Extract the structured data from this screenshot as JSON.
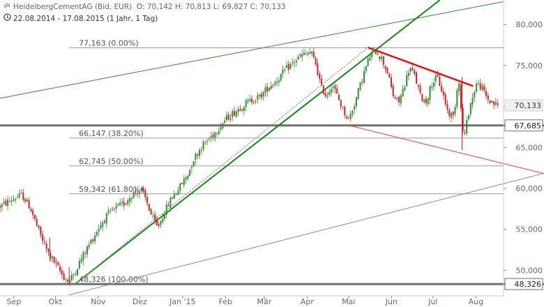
{
  "header": {
    "instrument": "HeidelbergCementAG (Bid, EUR)",
    "ohlc": "O: 70,142  H: 70,813  L: 69,827  C: 70,133",
    "range": "22.08.2014 - 17.08.2015 (1 Jahr, 1 Tag)",
    "logo_icon": "candlestick-logo-icon",
    "clock_icon": "clock-icon"
  },
  "chart_data": {
    "type": "candlestick",
    "ylim": [
      46.8,
      83.0
    ],
    "x_ticks": [
      {
        "label": "Sep",
        "day": 10
      },
      {
        "label": "Okt",
        "day": 40
      },
      {
        "label": "Nov",
        "day": 71
      },
      {
        "label": "Dez",
        "day": 101
      },
      {
        "label": "Jan '15",
        "day": 132
      },
      {
        "label": "Feb",
        "day": 163
      },
      {
        "label": "Mär",
        "day": 191
      },
      {
        "label": "Apr",
        "day": 222
      },
      {
        "label": "Mai",
        "day": 252
      },
      {
        "label": "Jun",
        "day": 283
      },
      {
        "label": "Jul",
        "day": 313
      },
      {
        "label": "Aug",
        "day": 344
      }
    ],
    "y_ticks": [
      "80,000",
      "75,000",
      "70,000",
      "65,000",
      "60,000",
      "55,000",
      "50,000"
    ],
    "y_tick_values": [
      80,
      75,
      70,
      65,
      60,
      55,
      50
    ],
    "price_anchors": [
      [
        0,
        57.8
      ],
      [
        8,
        58.6
      ],
      [
        16,
        59.2
      ],
      [
        22,
        57.6
      ],
      [
        28,
        54.8
      ],
      [
        34,
        52.4
      ],
      [
        40,
        50.8
      ],
      [
        46,
        49.2
      ],
      [
        50,
        48.6
      ],
      [
        54,
        49.8
      ],
      [
        60,
        51.8
      ],
      [
        66,
        53.6
      ],
      [
        72,
        55.4
      ],
      [
        78,
        56.8
      ],
      [
        84,
        57.6
      ],
      [
        90,
        58.2
      ],
      [
        96,
        59.4
      ],
      [
        102,
        59.8
      ],
      [
        106,
        58.4
      ],
      [
        110,
        56.4
      ],
      [
        114,
        55.2
      ],
      [
        118,
        56.8
      ],
      [
        124,
        58.8
      ],
      [
        130,
        60.2
      ],
      [
        136,
        61.8
      ],
      [
        140,
        63.6
      ],
      [
        146,
        65.2
      ],
      [
        152,
        66.2
      ],
      [
        158,
        67.4
      ],
      [
        164,
        68.6
      ],
      [
        170,
        69.4
      ],
      [
        176,
        70.2
      ],
      [
        182,
        70.8
      ],
      [
        188,
        71.2
      ],
      [
        194,
        72.4
      ],
      [
        200,
        73.2
      ],
      [
        206,
        74.4
      ],
      [
        212,
        75.4
      ],
      [
        218,
        76.2
      ],
      [
        224,
        76.6
      ],
      [
        228,
        75.4
      ],
      [
        232,
        72.4
      ],
      [
        236,
        71.2
      ],
      [
        240,
        72.8
      ],
      [
        244,
        71.2
      ],
      [
        248,
        69.6
      ],
      [
        252,
        68.4
      ],
      [
        256,
        70.2
      ],
      [
        260,
        72.4
      ],
      [
        264,
        74.6
      ],
      [
        268,
        76.4
      ],
      [
        272,
        76.8
      ],
      [
        276,
        75.8
      ],
      [
        280,
        74.2
      ],
      [
        284,
        71.4
      ],
      [
        288,
        70.4
      ],
      [
        292,
        72.4
      ],
      [
        296,
        74.8
      ],
      [
        300,
        73.6
      ],
      [
        304,
        71.2
      ],
      [
        308,
        70.6
      ],
      [
        312,
        72.8
      ],
      [
        316,
        73.6
      ],
      [
        320,
        71.6
      ],
      [
        324,
        69.2
      ],
      [
        328,
        68.8
      ],
      [
        330,
        71.8
      ],
      [
        332,
        73.4
      ],
      [
        334,
        67.2
      ],
      [
        336,
        66.6
      ],
      [
        338,
        68.6
      ],
      [
        340,
        70.4
      ],
      [
        342,
        71.2
      ],
      [
        344,
        72.8
      ],
      [
        348,
        72.4
      ],
      [
        352,
        71.0
      ],
      [
        356,
        70.4
      ],
      [
        360,
        70.13
      ]
    ],
    "last_close": {
      "label": "70,133",
      "value": 70.133
    },
    "horizontal_levels": [
      {
        "value": 67.685,
        "label": "67,685",
        "color": "#777777"
      },
      {
        "value": 48.326,
        "label": "48,326",
        "color": "#777777"
      }
    ],
    "fibonacci": [
      {
        "value": 77.163,
        "label": "77,163 (0.00%)"
      },
      {
        "value": 66.147,
        "label": "66,147 (38.20%)"
      },
      {
        "value": 62.745,
        "label": "62,745 (50.00%)"
      },
      {
        "value": 59.342,
        "label": "59,342 (61.80%)"
      },
      {
        "value": 48.326,
        "label": "48,326 (100.00%)"
      }
    ],
    "trendlines": [
      {
        "name": "green-upper-channel",
        "color": "#2e8b2e",
        "width": 1,
        "from": [
          0,
          71.0
        ],
        "to": [
          364,
          82.8
        ]
      },
      {
        "name": "green-trend",
        "color": "#118811",
        "width": 2,
        "from": [
          54,
          48.3
        ],
        "to": [
          318,
          83.0
        ]
      },
      {
        "name": "dotted-trend",
        "color": "#999999",
        "width": 1.5,
        "dash": true,
        "from": [
          54,
          48.3
        ],
        "to": [
          266,
          77.2
        ]
      },
      {
        "name": "red-resistance",
        "color": "#ee1111",
        "width": 2.5,
        "from": [
          266,
          77.2
        ],
        "to": [
          342,
          72.5
        ]
      },
      {
        "name": "red-support",
        "color": "#ee3333",
        "width": 1,
        "from": [
          252,
          67.7
        ],
        "to": [
          420,
          60.7
        ]
      },
      {
        "name": "gray-support",
        "color": "#888888",
        "width": 1,
        "from": [
          50,
          47.0
        ],
        "to": [
          420,
          63.0
        ]
      }
    ],
    "colors": {
      "up": "#2e8b2e",
      "down": "#cc2222",
      "grid": "#555555",
      "axis_text": "#666666"
    }
  }
}
